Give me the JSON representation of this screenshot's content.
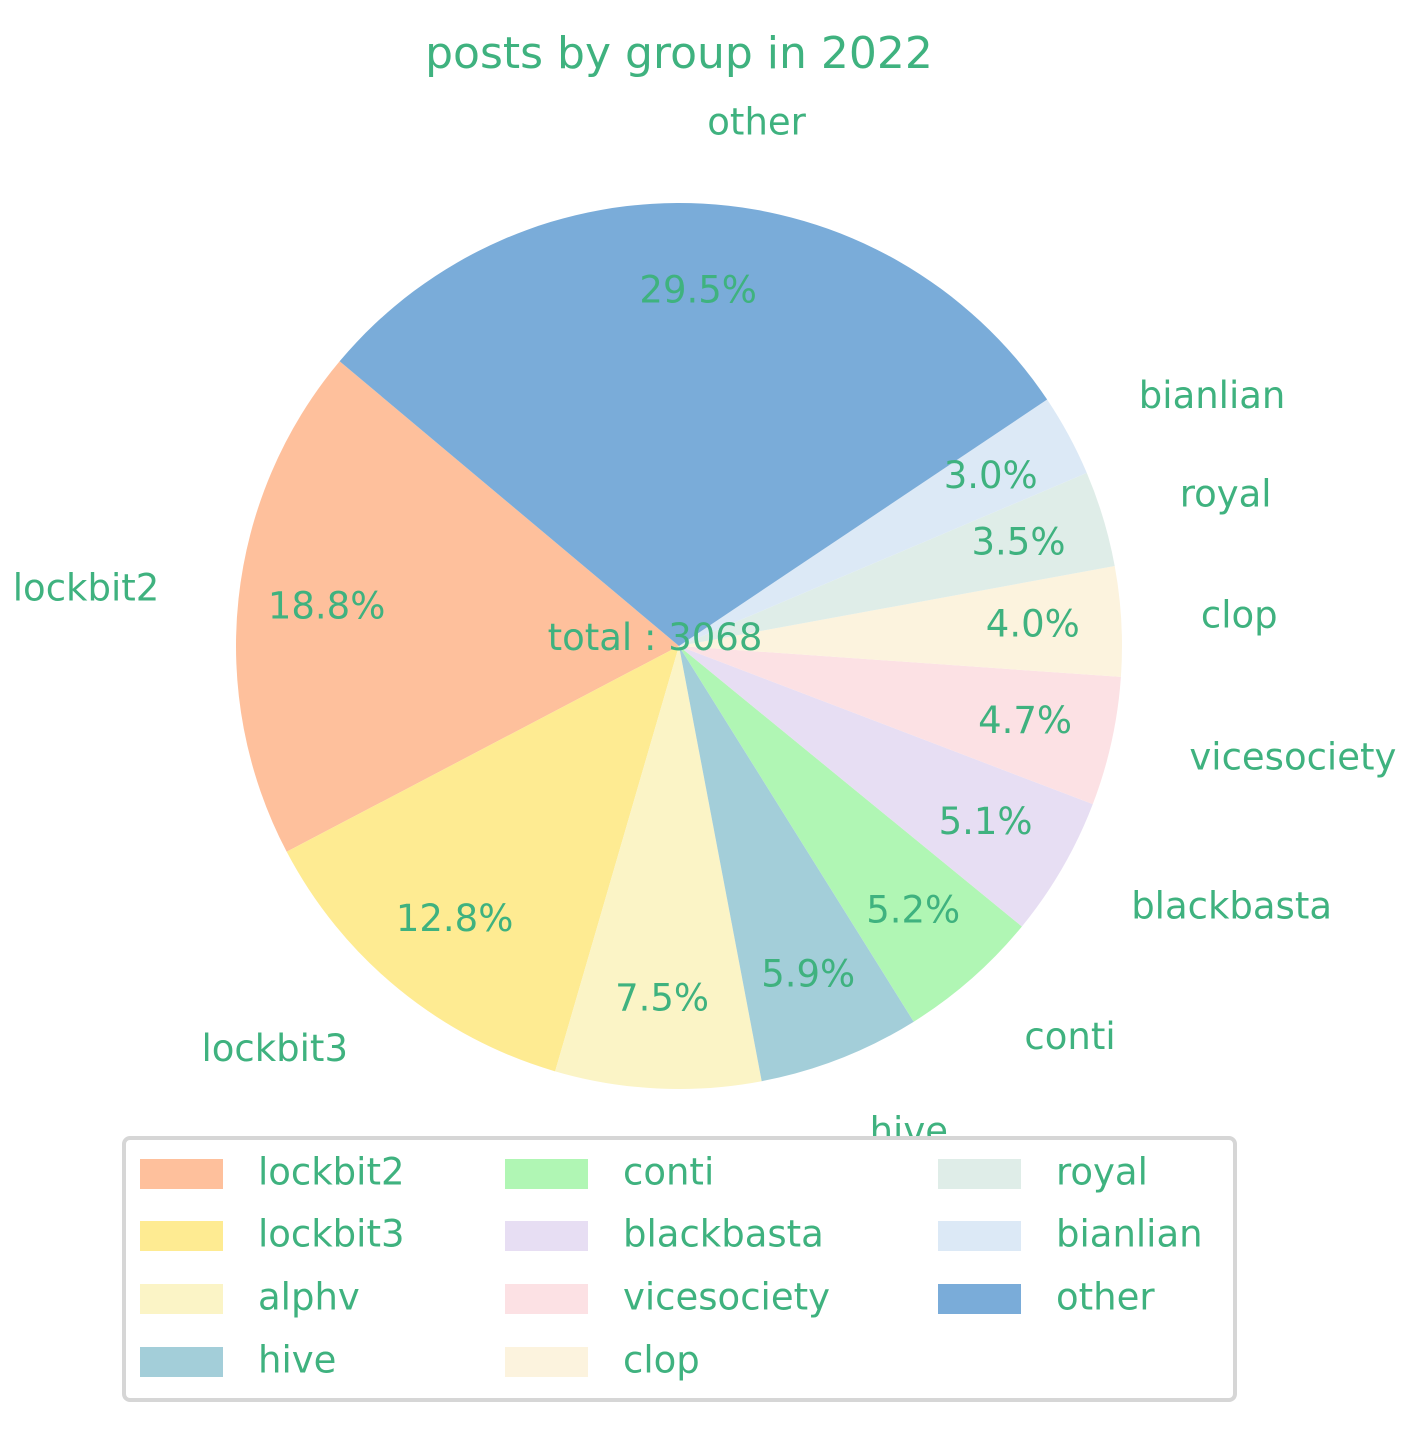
{
  "chart_data": {
    "type": "pie",
    "title": "posts by group in 2022",
    "center_text": "total : 3068",
    "text_color": "#3fb27f",
    "slices": [
      {
        "name": "lockbit2",
        "value": 18.8,
        "label": "18.8%",
        "color": "#fec09c"
      },
      {
        "name": "lockbit3",
        "value": 12.8,
        "label": "12.8%",
        "color": "#feeb92"
      },
      {
        "name": "alphv",
        "value": 7.5,
        "label": "7.5%",
        "color": "#fbf4c6"
      },
      {
        "name": "hive",
        "value": 5.9,
        "label": "5.9%",
        "color": "#a3ced9"
      },
      {
        "name": "conti",
        "value": 5.2,
        "label": "5.2%",
        "color": "#b0f6b4"
      },
      {
        "name": "blackbasta",
        "value": 5.1,
        "label": "5.1%",
        "color": "#e7def3"
      },
      {
        "name": "vicesociety",
        "value": 4.7,
        "label": "4.7%",
        "color": "#fce1e4"
      },
      {
        "name": "clop",
        "value": 4.0,
        "label": "4.0%",
        "color": "#fcf3de"
      },
      {
        "name": "royal",
        "value": 3.5,
        "label": "3.5%",
        "color": "#dfede8"
      },
      {
        "name": "bianlian",
        "value": 3.0,
        "label": "3.0%",
        "color": "#dce9f6"
      },
      {
        "name": "other",
        "value": 29.5,
        "label": "29.5%",
        "color": "#7aacd9"
      }
    ],
    "legend": {
      "columns": 3,
      "placement": "bottom",
      "frame": true
    }
  }
}
